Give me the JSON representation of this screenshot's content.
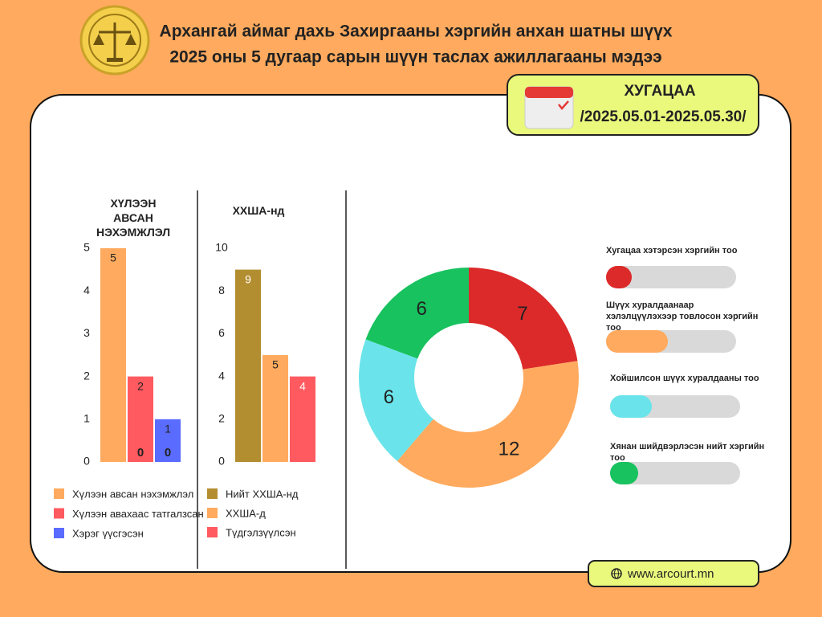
{
  "header": {
    "title": [
      "Архангай аймаг дахь Захиргааны хэргийн анхан шатны шүүх",
      "2025 оны 5 дугаар сарын шүүн таслах ажиллагааны мэдээ"
    ]
  },
  "period": {
    "label": "ХУГАЦАА",
    "dates": "/2025.05.01-2025.05.30/"
  },
  "website": "www.arcourt.mn",
  "chart_data": [
    {
      "type": "bar",
      "title": "ХҮЛЭЭН АВСАН НЭХЭМЖЛЭЛ",
      "ylim": [
        0,
        5
      ],
      "yticks": [
        0,
        1,
        2,
        3,
        4,
        5
      ],
      "series": [
        {
          "name": "Хүлээн авсан нэхэмжлэл",
          "color": "#ffaa5e",
          "values": [
            5
          ]
        },
        {
          "name": "Хүлээн авахаас татгалзсан",
          "color": "#ff5a5f",
          "values": [
            2
          ]
        },
        {
          "name": "Хэрэг үүсгэсэн",
          "color": "#5a6cff",
          "values": [
            1
          ]
        }
      ],
      "annotations": [
        "0",
        "0"
      ]
    },
    {
      "type": "bar",
      "title": "ХХША-нд",
      "ylim": [
        0,
        10
      ],
      "yticks": [
        0,
        2,
        4,
        6,
        8,
        10
      ],
      "series": [
        {
          "name": "Нийт ХХША-нд",
          "color": "#b38e30",
          "values": [
            9
          ]
        },
        {
          "name": "ХХША-д",
          "color": "#ffaa5e",
          "values": [
            5
          ]
        },
        {
          "name": "Түдгэлзүүлсэн",
          "color": "#ff5a5f",
          "values": [
            4
          ]
        }
      ]
    },
    {
      "type": "donut",
      "categories": [
        "Хугацаа хэтэрсэн хэргийн тоо",
        "Шүүх хуралдаанаар хэлэлцүүлэхээр товлосон хэргийн тоо",
        "Хойшилсон шүүх хуралдааны тоо",
        "Хянан шийдвэрлэсэн нийт хэргийн тоо"
      ],
      "values": [
        7,
        12,
        6,
        6
      ],
      "colors": [
        "#dc2a2a",
        "#ffaa5e",
        "#6ae4ea",
        "#18c25e"
      ]
    }
  ]
}
